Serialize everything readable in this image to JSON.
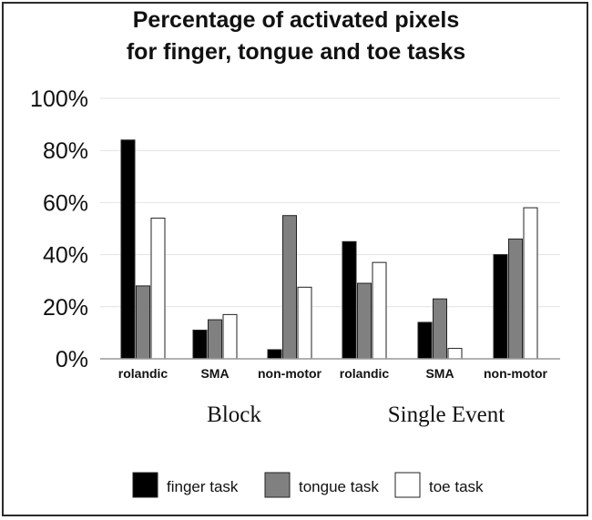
{
  "chart_data": {
    "type": "bar",
    "title_lines": [
      "Percentage of activated pixels",
      "for finger, tongue and toe tasks"
    ],
    "categories": [
      "rolandic",
      "SMA",
      "non-motor",
      "rolandic",
      "SMA",
      "non-motor"
    ],
    "groups": [
      {
        "label": "Block",
        "start": 0,
        "end": 2
      },
      {
        "label": "Single Event",
        "start": 3,
        "end": 5
      }
    ],
    "series": [
      {
        "name": "finger task",
        "color": "#000000",
        "values": [
          84,
          11,
          3.5,
          45,
          14,
          40
        ]
      },
      {
        "name": "tongue task",
        "color": "#808080",
        "values": [
          28,
          15,
          55,
          29,
          23,
          46
        ]
      },
      {
        "name": "toe task",
        "color": "#ffffff",
        "values": [
          54,
          17,
          27.5,
          37,
          4,
          58
        ]
      }
    ],
    "ylim": [
      0,
      100
    ],
    "yticks": [
      "0%",
      "20%",
      "40%",
      "60%",
      "80%",
      "100%"
    ],
    "ytick_values": [
      0,
      20,
      40,
      60,
      80,
      100
    ],
    "grid": true,
    "legend_position": "bottom"
  }
}
